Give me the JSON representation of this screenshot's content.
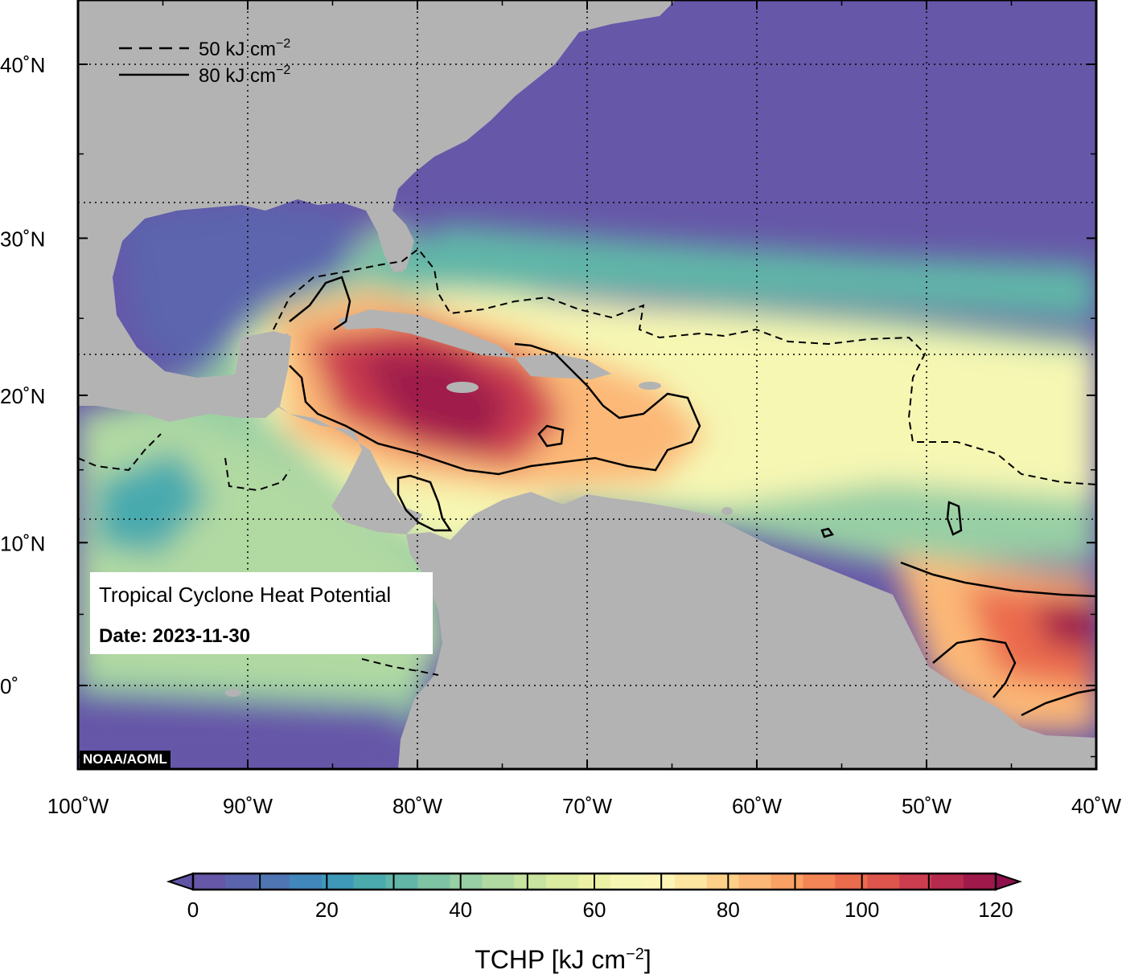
{
  "map": {
    "title": "Tropical Cyclone Heat Potential",
    "date_label": "Date: 2023-11-30",
    "credit": "NOAA/AOML",
    "extent": {
      "lon": [
        -100,
        -40
      ],
      "lat": [
        -5,
        44
      ]
    },
    "lon_ticks": [
      {
        "value": -100,
        "label": "100˚W"
      },
      {
        "value": -90,
        "label": "90˚W"
      },
      {
        "value": -80,
        "label": "80˚W"
      },
      {
        "value": -70,
        "label": "70˚W"
      },
      {
        "value": -60,
        "label": "60˚W"
      },
      {
        "value": -50,
        "label": "50˚W"
      },
      {
        "value": -40,
        "label": "40˚W"
      }
    ],
    "lat_ticks": [
      {
        "value": 40,
        "label": "40˚N"
      },
      {
        "value": 30,
        "label": "30˚N"
      },
      {
        "value": 20,
        "label": "20˚N"
      },
      {
        "value": 10,
        "label": "10˚N"
      },
      {
        "value": 0,
        "label": "0˚"
      }
    ],
    "contour_legend": [
      {
        "style": "dashed",
        "label": "50 kJ cm",
        "exponent": "−2"
      },
      {
        "style": "solid",
        "label": "80 kJ cm",
        "exponent": "−2"
      }
    ],
    "land_color": "#b3b3b3",
    "grid": "dotted"
  },
  "colorbar": {
    "min": 0,
    "max": 120,
    "step": 5,
    "ticks": [
      {
        "value": 0,
        "label": "0"
      },
      {
        "value": 20,
        "label": "20"
      },
      {
        "value": 40,
        "label": "40"
      },
      {
        "value": 60,
        "label": "60"
      },
      {
        "value": 80,
        "label": "80"
      },
      {
        "value": 100,
        "label": "100"
      },
      {
        "value": 120,
        "label": "120"
      }
    ],
    "label": "TCHP [kJ cm",
    "label_exponent": "−2",
    "label_close": "]",
    "colors": [
      "#6657a8",
      "#5b65ae",
      "#4f75b3",
      "#4287bb",
      "#3e99b8",
      "#4aaaae",
      "#61b6a8",
      "#7ec4a4",
      "#98cfa4",
      "#b1d9a2",
      "#c7e39f",
      "#dbeb9f",
      "#ebf2a5",
      "#f6f7b3",
      "#fdf5b5",
      "#fde6a0",
      "#fdd089",
      "#fcb877",
      "#f9a064",
      "#f48556",
      "#eb6b4d",
      "#de554d",
      "#cc3e4f",
      "#b52a4e",
      "#9f1a4b"
    ],
    "under_color": "#6054a6",
    "over_color": "#8f0f4c"
  }
}
